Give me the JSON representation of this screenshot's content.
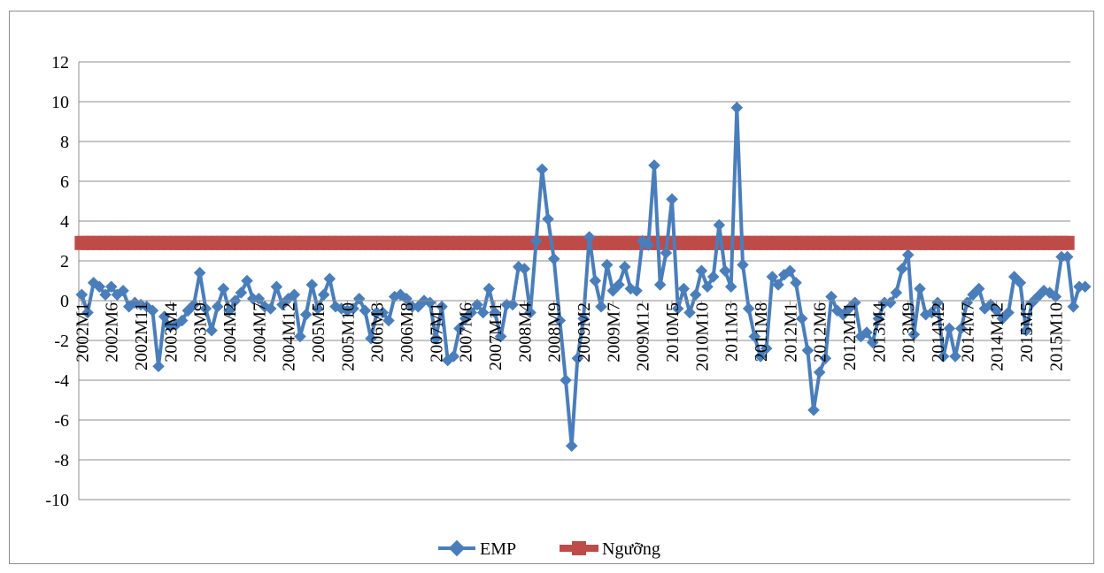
{
  "chart_data": {
    "type": "line",
    "title": "",
    "xlabel": "",
    "ylabel": "",
    "ylim": [
      -10,
      12
    ],
    "ytick_step": 2,
    "grid": true,
    "legend_position": "bottom",
    "yticks": [
      "12",
      "10",
      "8",
      "6",
      "4",
      "2",
      "0",
      "-2",
      "-4",
      "-6",
      "-8",
      "-10"
    ],
    "xtick_labels": [
      "2002M1",
      "2002M6",
      "2002M11",
      "2003M4",
      "2003M9",
      "2004M2",
      "2004M7",
      "2004M12",
      "2005M5",
      "2005M10",
      "2006M3",
      "2006M8",
      "2007M1",
      "2007M6",
      "2007M11",
      "2008M4",
      "2008M9",
      "2009M2",
      "2009M7",
      "2009M12",
      "2010M5",
      "2010M10",
      "2011M3",
      "2011M8",
      "2012M1",
      "2012M6",
      "2012M11",
      "2013M4",
      "2013M9",
      "2014M2",
      "2014M7",
      "2014M12",
      "2015M5",
      "2015M10"
    ],
    "x_start": "2002M1",
    "period_count": 168,
    "series": [
      {
        "name": "EMP",
        "color": "#4a7ebb",
        "marker": "diamond",
        "values": [
          0.3,
          -0.6,
          0.9,
          0.7,
          0.3,
          0.7,
          0.3,
          0.5,
          -0.3,
          -0.1,
          -0.2,
          -0.3,
          -0.5,
          -3.3,
          -0.8,
          -1.3,
          -1.2,
          -1.0,
          -0.5,
          -0.2,
          1.4,
          -0.4,
          -1.5,
          -0.3,
          0.6,
          -0.5,
          0.0,
          0.4,
          1.0,
          0.1,
          0.1,
          -0.3,
          -0.4,
          0.7,
          -0.2,
          0.1,
          0.3,
          -1.8,
          -0.7,
          0.8,
          -0.4,
          0.3,
          1.1,
          -0.3,
          -0.4,
          -0.5,
          -0.4,
          0.1,
          -0.5,
          -1.9,
          -0.6,
          -0.6,
          -1.0,
          0.2,
          0.3,
          0.1,
          -0.3,
          -0.3,
          0.0,
          -0.1,
          -1.9,
          -0.3,
          -3.0,
          -2.8,
          -1.4,
          -0.9,
          -0.6,
          -0.2,
          -0.6,
          0.6,
          -0.6,
          -1.8,
          -0.2,
          -0.2,
          1.7,
          1.6,
          -0.6,
          3.0,
          6.6,
          4.1,
          2.1,
          -1.0,
          -4.0,
          -7.3,
          -2.9,
          -0.9,
          3.2,
          1.0,
          -0.3,
          1.8,
          0.5,
          0.8,
          1.7,
          0.6,
          0.5,
          3.0,
          2.8,
          6.8,
          0.8,
          2.4,
          5.1,
          -0.4,
          0.6,
          -0.6,
          0.3,
          1.5,
          0.7,
          1.2,
          3.8,
          1.5,
          0.7,
          9.7,
          1.8,
          -0.4,
          -1.8,
          -2.8,
          -2.4,
          1.2,
          0.8,
          1.3,
          1.5,
          0.9,
          -0.9,
          -2.5,
          -5.5,
          -3.6,
          -2.9,
          0.2,
          -0.5,
          -0.7,
          -0.4,
          -0.1,
          -1.8,
          -1.6,
          -2.1,
          -0.9,
          -0.1,
          -0.1,
          0.4,
          1.6,
          2.3,
          -1.7,
          0.6,
          -0.7,
          -0.6,
          -0.1,
          -2.8,
          -1.4,
          -2.8,
          -1.4,
          -0.1,
          0.3,
          0.6,
          -0.4,
          -0.2,
          -0.5,
          -0.9,
          -0.6,
          1.2,
          0.9,
          -1.5,
          -0.1,
          0.2,
          0.5,
          0.4,
          0.2,
          2.2,
          2.2,
          -0.3,
          0.7,
          0.7
        ]
      },
      {
        "name": "Ngưỡng",
        "color": "#be4b48",
        "marker": "square",
        "constant": 2.9
      }
    ]
  }
}
